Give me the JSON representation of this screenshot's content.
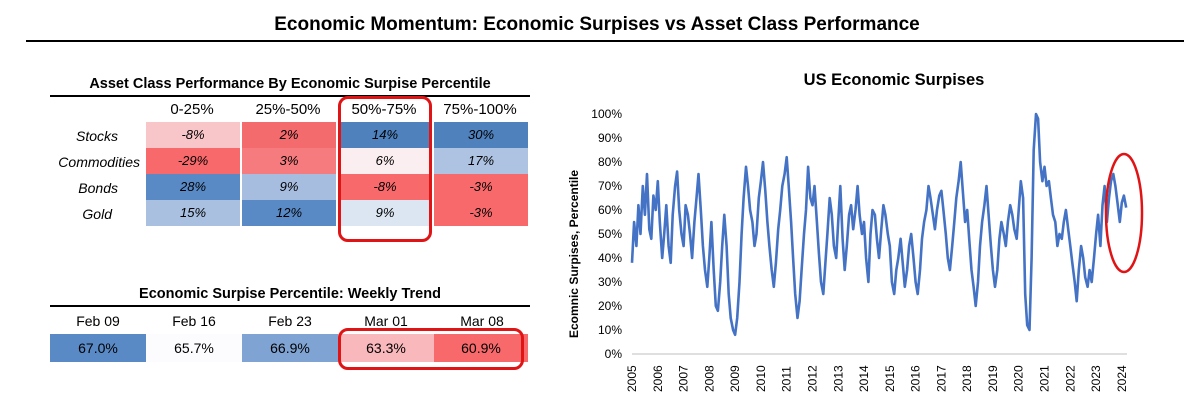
{
  "title": "Economic Momentum: Economic Surpises vs Asset Class Performance",
  "performance_table": {
    "title": "Asset Class Performance By Economic Surpise Percentile",
    "columns": [
      "0-25%",
      "25%-50%",
      "50%-75%",
      "75%-100%"
    ],
    "rows": [
      {
        "label": "Stocks",
        "values": [
          "-8%",
          "2%",
          "14%",
          "30%"
        ],
        "colors": [
          "#f8c5c8",
          "#f46b6e",
          "#4f81bd",
          "#4f81bd"
        ]
      },
      {
        "label": "Commodities",
        "values": [
          "-29%",
          "3%",
          "6%",
          "17%"
        ],
        "colors": [
          "#f8696b",
          "#f67b7e",
          "#fbeef0",
          "#aec3e2"
        ]
      },
      {
        "label": "Bonds",
        "values": [
          "28%",
          "9%",
          "-8%",
          "-3%"
        ],
        "colors": [
          "#5a8ac6",
          "#a6bde0",
          "#f8696b",
          "#f8696b"
        ]
      },
      {
        "label": "Gold",
        "values": [
          "15%",
          "12%",
          "9%",
          "-3%"
        ],
        "colors": [
          "#a9c0e1",
          "#5a8ac6",
          "#dce6f2",
          "#f8696b"
        ]
      }
    ],
    "highlight_column": "50%-75%",
    "highlight_color": "#e01414"
  },
  "weekly_trend": {
    "title": "Economic Surpise Percentile: Weekly Trend",
    "dates": [
      "Feb 09",
      "Feb 16",
      "Feb 23",
      "Mar 01",
      "Mar 08"
    ],
    "values": [
      "67.0%",
      "65.7%",
      "66.9%",
      "63.3%",
      "60.9%"
    ],
    "colors": [
      "#5a8ac6",
      "#fcfcff",
      "#7fa3d2",
      "#f9b8bb",
      "#f8696b"
    ],
    "highlight_dates": [
      "Mar 01",
      "Mar 08"
    ]
  },
  "chart_data": {
    "type": "line",
    "title": "US Economic Surpises",
    "ylabel": "Ecomnic Surpises, Percentile",
    "xlabel": "",
    "ylim": [
      0,
      100
    ],
    "yticks": [
      "0%",
      "10%",
      "20%",
      "30%",
      "40%",
      "50%",
      "60%",
      "70%",
      "80%",
      "90%",
      "100%"
    ],
    "xticks": [
      "2005",
      "2006",
      "2007",
      "2008",
      "2009",
      "2010",
      "2011",
      "2012",
      "2013",
      "2014",
      "2015",
      "2016",
      "2017",
      "2018",
      "2019",
      "2020",
      "2021",
      "2022",
      "2023",
      "2024"
    ],
    "xlim": [
      2005,
      2024.2
    ],
    "grid": false,
    "line_color": "#4472c4",
    "annotation": "red ellipse around 2023-2024 values",
    "series": [
      {
        "x": [
          2005.0,
          2005.08,
          2005.17,
          2005.25,
          2005.33,
          2005.42,
          2005.5,
          2005.58,
          2005.67,
          2005.75,
          2005.83,
          2005.92,
          2006.0,
          2006.08,
          2006.17,
          2006.25,
          2006.33,
          2006.42,
          2006.5,
          2006.58,
          2006.67,
          2006.75,
          2006.83,
          2006.92,
          2007.0,
          2007.08,
          2007.17,
          2007.25,
          2007.33,
          2007.42,
          2007.5,
          2007.58,
          2007.67,
          2007.75,
          2007.83,
          2007.92,
          2008.0,
          2008.08,
          2008.17,
          2008.25,
          2008.33,
          2008.42,
          2008.5,
          2008.58,
          2008.67,
          2008.75,
          2008.83,
          2008.92,
          2009.0,
          2009.08,
          2009.17,
          2009.25,
          2009.33,
          2009.42,
          2009.5,
          2009.58,
          2009.67,
          2009.75,
          2009.83,
          2009.92,
          2010.0,
          2010.08,
          2010.17,
          2010.25,
          2010.33,
          2010.42,
          2010.5,
          2010.58,
          2010.67,
          2010.75,
          2010.83,
          2010.92,
          2011.0,
          2011.08,
          2011.17,
          2011.25,
          2011.33,
          2011.42,
          2011.5,
          2011.58,
          2011.67,
          2011.75,
          2011.83,
          2011.92,
          2012.0,
          2012.08,
          2012.17,
          2012.25,
          2012.33,
          2012.42,
          2012.5,
          2012.58,
          2012.67,
          2012.75,
          2012.83,
          2012.92,
          2013.0,
          2013.08,
          2013.17,
          2013.25,
          2013.33,
          2013.42,
          2013.5,
          2013.58,
          2013.67,
          2013.75,
          2013.83,
          2013.92,
          2014.0,
          2014.08,
          2014.17,
          2014.25,
          2014.33,
          2014.42,
          2014.5,
          2014.58,
          2014.67,
          2014.75,
          2014.83,
          2014.92,
          2015.0,
          2015.08,
          2015.17,
          2015.25,
          2015.33,
          2015.42,
          2015.5,
          2015.58,
          2015.67,
          2015.75,
          2015.83,
          2015.92,
          2016.0,
          2016.08,
          2016.17,
          2016.25,
          2016.33,
          2016.42,
          2016.5,
          2016.58,
          2016.67,
          2016.75,
          2016.83,
          2016.92,
          2017.0,
          2017.08,
          2017.17,
          2017.25,
          2017.33,
          2017.42,
          2017.5,
          2017.58,
          2017.67,
          2017.75,
          2017.83,
          2017.92,
          2018.0,
          2018.08,
          2018.17,
          2018.25,
          2018.33,
          2018.42,
          2018.5,
          2018.58,
          2018.67,
          2018.75,
          2018.83,
          2018.92,
          2019.0,
          2019.08,
          2019.17,
          2019.25,
          2019.33,
          2019.42,
          2019.5,
          2019.58,
          2019.67,
          2019.75,
          2019.83,
          2019.92,
          2020.0,
          2020.08,
          2020.17,
          2020.25,
          2020.33,
          2020.42,
          2020.5,
          2020.58,
          2020.67,
          2020.75,
          2020.83,
          2020.92,
          2021.0,
          2021.08,
          2021.17,
          2021.25,
          2021.33,
          2021.42,
          2021.5,
          2021.58,
          2021.67,
          2021.75,
          2021.83,
          2021.92,
          2022.0,
          2022.08,
          2022.17,
          2022.25,
          2022.33,
          2022.42,
          2022.5,
          2022.58,
          2022.67,
          2022.75,
          2022.83,
          2022.92,
          2023.0,
          2023.08,
          2023.17,
          2023.25,
          2023.33,
          2023.42,
          2023.5,
          2023.58,
          2023.67,
          2023.75,
          2023.83,
          2023.92,
          2024.0,
          2024.08,
          2024.17
        ],
        "y": [
          38,
          55,
          45,
          62,
          50,
          70,
          58,
          75,
          52,
          48,
          66,
          60,
          72,
          55,
          40,
          50,
          62,
          45,
          38,
          58,
          70,
          76,
          60,
          50,
          45,
          62,
          58,
          50,
          40,
          55,
          65,
          75,
          60,
          45,
          35,
          28,
          40,
          55,
          35,
          20,
          18,
          30,
          45,
          58,
          45,
          25,
          15,
          10,
          8,
          15,
          30,
          50,
          65,
          78,
          70,
          60,
          55,
          45,
          50,
          65,
          72,
          80,
          68,
          55,
          45,
          35,
          28,
          38,
          52,
          60,
          70,
          75,
          82,
          70,
          55,
          40,
          25,
          15,
          22,
          35,
          50,
          60,
          78,
          65,
          62,
          70,
          55,
          42,
          30,
          25,
          38,
          50,
          65,
          58,
          45,
          40,
          55,
          70,
          48,
          35,
          45,
          58,
          62,
          52,
          60,
          70,
          58,
          50,
          55,
          40,
          30,
          50,
          60,
          58,
          48,
          40,
          52,
          62,
          58,
          50,
          45,
          30,
          25,
          35,
          40,
          48,
          38,
          28,
          35,
          45,
          50,
          40,
          30,
          25,
          35,
          48,
          55,
          60,
          70,
          65,
          58,
          52,
          60,
          66,
          68,
          60,
          50,
          40,
          35,
          45,
          55,
          65,
          72,
          80,
          68,
          55,
          60,
          48,
          35,
          28,
          20,
          30,
          45,
          55,
          62,
          70,
          58,
          45,
          35,
          28,
          35,
          48,
          55,
          50,
          45,
          55,
          62,
          58,
          52,
          48,
          60,
          72,
          65,
          25,
          12,
          10,
          40,
          85,
          100,
          98,
          80,
          72,
          78,
          70,
          72,
          65,
          58,
          55,
          45,
          50,
          48,
          55,
          60,
          52,
          45,
          38,
          30,
          22,
          35,
          45,
          40,
          32,
          28,
          35,
          30,
          40,
          50,
          58,
          45,
          62,
          70,
          55,
          65,
          72,
          75,
          70,
          63,
          55,
          63,
          66,
          61
        ]
      }
    ]
  }
}
